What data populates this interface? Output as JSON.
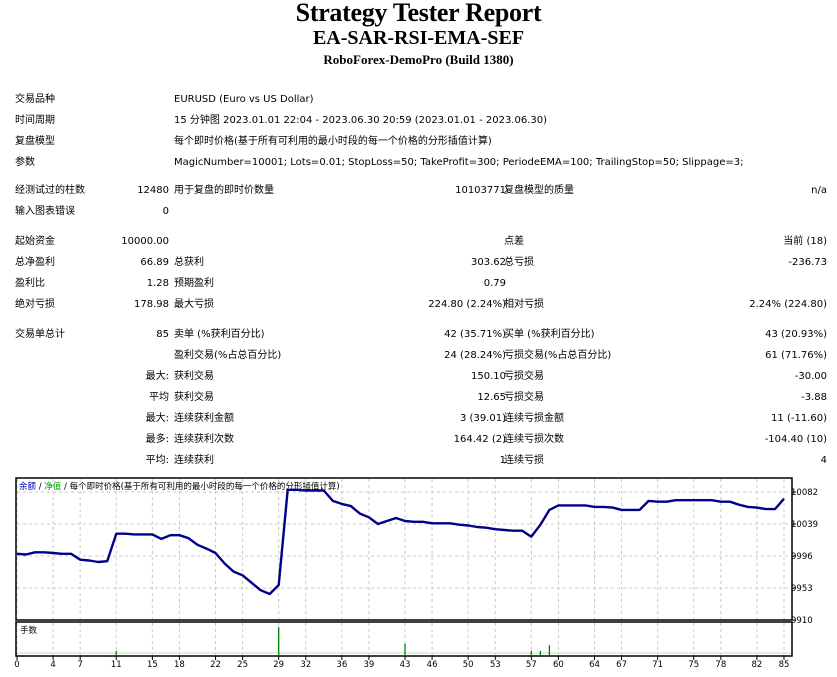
{
  "header": {
    "title": "Strategy Tester Report",
    "ea_name": "EA-SAR-RSI-EMA-SEF",
    "server": "RoboForex-DemoPro (Build 1380)"
  },
  "settings": {
    "symbol_label": "交易品种",
    "symbol_value": "EURUSD (Euro vs US Dollar)",
    "period_label": "时间周期",
    "period_value": "15 分钟图 2023.01.01 22:04 - 2023.06.30 20:59 (2023.01.01 - 2023.06.30)",
    "model_label": "复盘模型",
    "model_value": "每个即时价格(基于所有可利用的最小时段的每一个价格的分形插值计算)",
    "params_label": "参数",
    "params_value": "MagicNumber=10001; Lots=0.01; StopLoss=50; TakeProfit=300; PeriodeEMA=100; TrailingStop=50; Slippage=3;"
  },
  "stats": {
    "bars_label": "经测试过的柱数",
    "bars_value": "12480",
    "ticks_label": "用于复盘的即时价数量",
    "ticks_value": "10103771",
    "quality_label": "复盘模型的质量",
    "quality_value": "n/a",
    "errors_label": "输入图表错误",
    "errors_value": "0",
    "deposit_label": "起始资金",
    "deposit_value": "10000.00",
    "spread_label": "点差",
    "spread_value": "当前 (18)",
    "net_profit_label": "总净盈利",
    "net_profit_value": "66.89",
    "gross_profit_label": "总获利",
    "gross_profit_value": "303.62",
    "gross_loss_label": "总亏损",
    "gross_loss_value": "-236.73",
    "profit_factor_label": "盈利比",
    "profit_factor_value": "1.28",
    "expected_payoff_label": "预期盈利",
    "expected_payoff_value": "0.79",
    "abs_drawdown_label": "绝对亏损",
    "abs_drawdown_value": "178.98",
    "max_drawdown_label": "最大亏损",
    "max_drawdown_value": "224.80 (2.24%)",
    "rel_drawdown_label": "相对亏损",
    "rel_drawdown_value": "2.24% (224.80)"
  },
  "trades": {
    "total_label": "交易单总计",
    "total_value": "85",
    "short_label": "卖单 (%获利百分比)",
    "short_value": "42 (35.71%)",
    "long_label": "买单 (%获利百分比)",
    "long_value": "43 (20.93%)",
    "profit_trades_label": "盈利交易(%占总百分比)",
    "profit_trades_value": "24 (28.24%)",
    "loss_trades_label": "亏损交易(%占总百分比)",
    "loss_trades_value": "61 (71.76%)",
    "largest_prefix": "最大:",
    "largest_profit_label": "获利交易",
    "largest_profit_value": "150.10",
    "largest_loss_label": "亏损交易",
    "largest_loss_value": "-30.00",
    "average_prefix": "平均",
    "avg_profit_label": "获利交易",
    "avg_profit_value": "12.65",
    "avg_loss_label": "亏损交易",
    "avg_loss_value": "-3.88",
    "max_prefix": "最大:",
    "max_consec_wins_label": "连续获利金额",
    "max_consec_wins_value": "3 (39.01)",
    "max_consec_losses_label": "连续亏损金额",
    "max_consec_losses_value": "11 (-11.60)",
    "maximal_prefix": "最多:",
    "maximal_consec_profit_label": "连续获利次数",
    "maximal_consec_profit_value": "164.42 (2)",
    "maximal_consec_loss_label": "连续亏损次数",
    "maximal_consec_loss_value": "-104.40 (10)",
    "avg_consec_prefix": "平均:",
    "avg_consec_wins_label": "连续获利",
    "avg_consec_wins_value": "1",
    "avg_consec_losses_label": "连续亏损",
    "avg_consec_losses_value": "4"
  },
  "chart": {
    "legend_balance": "余额",
    "legend_sep1": " / ",
    "legend_equity": "净值",
    "legend_sep2": " / ",
    "legend_model": "每个即时价格(基于所有可利用的最小时段的每一个价格的分形插值计算)",
    "volume_label": "手数",
    "colors": {
      "balance": "#00008B",
      "equity": "#00A000",
      "legend_balance": "#0000C0",
      "volume": "#008000",
      "grid": "#C8C8C8"
    }
  },
  "chart_data": {
    "type": "line",
    "title": "余额 / 净值 / 每个即时价格(基于所有可利用的最小时段的每一个价格的分形插值计算)",
    "xlabel": "",
    "ylabel": "",
    "x_ticks": [
      0,
      4,
      7,
      11,
      15,
      18,
      22,
      25,
      29,
      32,
      36,
      39,
      43,
      46,
      50,
      53,
      57,
      60,
      64,
      67,
      71,
      75,
      78,
      82,
      85
    ],
    "y_ticks": [
      10082,
      10039,
      9996,
      9953,
      9910
    ],
    "ylim": [
      9910,
      10090
    ],
    "xlim": [
      0,
      85
    ],
    "grid": true,
    "series": [
      {
        "name": "余额",
        "x": [
          0,
          1,
          2,
          3,
          4,
          5,
          6,
          7,
          8,
          9,
          10,
          11,
          12,
          13,
          14,
          15,
          16,
          17,
          18,
          19,
          20,
          21,
          22,
          23,
          24,
          25,
          26,
          27,
          28,
          29,
          30,
          31,
          32,
          33,
          34,
          35,
          36,
          37,
          38,
          39,
          40,
          41,
          42,
          43,
          44,
          45,
          46,
          47,
          48,
          49,
          50,
          51,
          52,
          53,
          54,
          55,
          56,
          57,
          58,
          59,
          60,
          61,
          62,
          63,
          64,
          65,
          66,
          67,
          68,
          69,
          70,
          71,
          72,
          73,
          74,
          75,
          76,
          77,
          78,
          79,
          80,
          81,
          82,
          83,
          84,
          85
        ],
        "values": [
          9999,
          9998,
          10001,
          10001,
          10000,
          9999,
          9999,
          9991,
          9990,
          9988,
          9989,
          10026,
          10026,
          10025,
          10025,
          10025,
          10019,
          10024,
          10024,
          10020,
          10011,
          10006,
          10000,
          9986,
          9975,
          9970,
          9960,
          9950,
          9945,
          9957,
          10085,
          10085,
          10084,
          10084,
          10084,
          10070,
          10066,
          10063,
          10053,
          10048,
          10039,
          10043,
          10047,
          10043,
          10042,
          10042,
          10040,
          10040,
          10040,
          10038,
          10037,
          10035,
          10034,
          10032,
          10031,
          10030,
          10030,
          10022,
          10038,
          10058,
          10064,
          10064,
          10064,
          10064,
          10062,
          10062,
          10061,
          10058,
          10058,
          10058,
          10070,
          10069,
          10069,
          10071,
          10071,
          10071,
          10071,
          10071,
          10069,
          10069,
          10065,
          10062,
          10061,
          10059,
          10059,
          10073
        ]
      }
    ],
    "volume_series": {
      "name": "手数",
      "spikes_at_trade": [
        11,
        29,
        43,
        57,
        58,
        59
      ],
      "relative_heights": [
        0.15,
        1.0,
        0.4,
        0.15,
        0.15,
        0.35
      ]
    }
  }
}
